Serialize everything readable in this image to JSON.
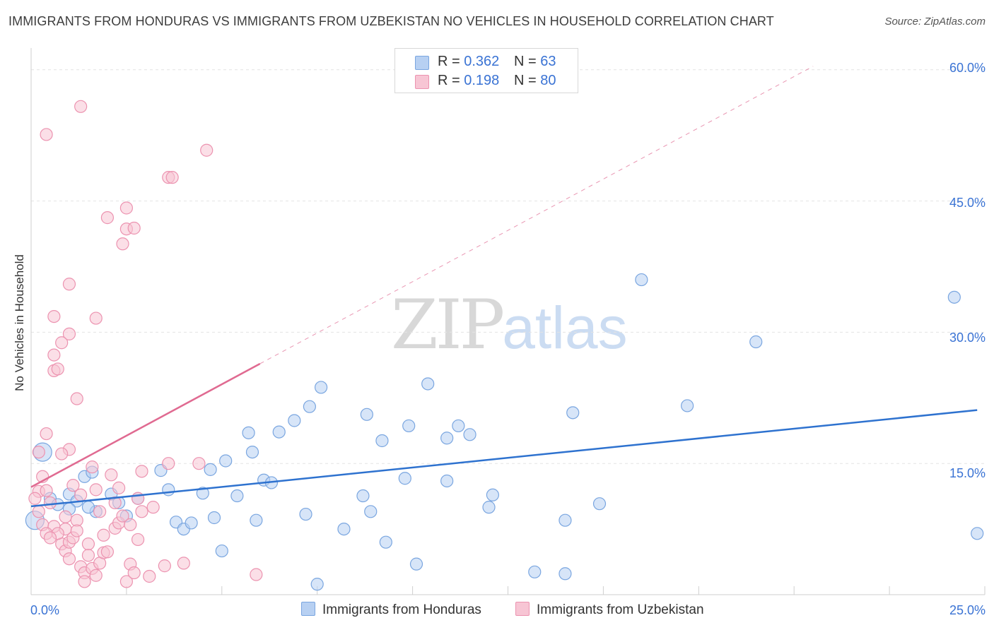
{
  "title": "IMMIGRANTS FROM HONDURAS VS IMMIGRANTS FROM UZBEKISTAN NO VEHICLES IN HOUSEHOLD CORRELATION CHART",
  "source": "Source: ZipAtlas.com",
  "watermark": {
    "zip": "ZIP",
    "atlas": "atlas"
  },
  "legend_top": {
    "rows": [
      {
        "r_label": "R =",
        "r_value": "0.362",
        "n_label": "N =",
        "n_value": "63"
      },
      {
        "r_label": "R =",
        "r_value": "0.198",
        "n_label": "N =",
        "n_value": "80"
      }
    ]
  },
  "colors": {
    "blue_fill": "#b7d0f2",
    "blue_stroke": "#7aa6e0",
    "blue_line": "#2e72cf",
    "pink_fill": "#f7c5d4",
    "pink_stroke": "#ec93b0",
    "pink_line": "#e06a91",
    "tick_text": "#3a73d4",
    "grid": "#e3e3e3"
  },
  "chart_data": {
    "type": "scatter",
    "title": "IMMIGRANTS FROM HONDURAS VS IMMIGRANTS FROM UZBEKISTAN NO VEHICLES IN HOUSEHOLD CORRELATION CHART",
    "xlabel": "",
    "ylabel": "No Vehicles in Household",
    "xlim": [
      0,
      25
    ],
    "ylim": [
      0,
      62
    ],
    "x_tick_labels": [
      "0.0%",
      "25.0%"
    ],
    "y_ticks": [
      15,
      30,
      45,
      60
    ],
    "y_tick_labels": [
      "15.0%",
      "30.0%",
      "45.0%",
      "60.0%"
    ],
    "grid": true,
    "legend_position": "bottom",
    "series": [
      {
        "name": "Immigrants from Honduras",
        "color": "#7aa6e0",
        "points": [
          [
            0.3,
            16.3
          ],
          [
            0.1,
            8.5
          ],
          [
            0.5,
            11.0
          ],
          [
            1.0,
            11.5
          ],
          [
            1.2,
            10.7
          ],
          [
            1.4,
            13.5
          ],
          [
            1.0,
            9.8
          ],
          [
            1.6,
            14.0
          ],
          [
            1.7,
            9.5
          ],
          [
            2.3,
            10.5
          ],
          [
            2.1,
            11.5
          ],
          [
            3.4,
            14.2
          ],
          [
            3.6,
            12.0
          ],
          [
            3.8,
            8.3
          ],
          [
            4.0,
            7.5
          ],
          [
            4.2,
            8.2
          ],
          [
            4.5,
            11.6
          ],
          [
            4.7,
            14.3
          ],
          [
            4.8,
            8.8
          ],
          [
            5.0,
            5.0
          ],
          [
            5.1,
            15.3
          ],
          [
            5.4,
            11.3
          ],
          [
            5.7,
            18.5
          ],
          [
            5.8,
            16.3
          ],
          [
            5.9,
            8.5
          ],
          [
            6.1,
            13.1
          ],
          [
            6.3,
            12.8
          ],
          [
            6.5,
            18.6
          ],
          [
            6.9,
            19.9
          ],
          [
            7.2,
            9.2
          ],
          [
            7.3,
            21.5
          ],
          [
            7.6,
            23.7
          ],
          [
            7.5,
            1.2
          ],
          [
            8.2,
            7.5
          ],
          [
            8.7,
            11.3
          ],
          [
            8.8,
            20.6
          ],
          [
            8.9,
            9.5
          ],
          [
            9.2,
            17.6
          ],
          [
            9.3,
            6.0
          ],
          [
            9.8,
            13.3
          ],
          [
            9.9,
            19.3
          ],
          [
            10.1,
            3.5
          ],
          [
            10.4,
            24.1
          ],
          [
            10.9,
            17.9
          ],
          [
            10.9,
            13.0
          ],
          [
            11.2,
            19.3
          ],
          [
            11.5,
            18.3
          ],
          [
            12.0,
            10.0
          ],
          [
            12.1,
            11.4
          ],
          [
            13.2,
            2.6
          ],
          [
            14.0,
            8.5
          ],
          [
            14.0,
            2.4
          ],
          [
            14.2,
            20.8
          ],
          [
            14.9,
            10.4
          ],
          [
            16.0,
            36.0
          ],
          [
            17.2,
            21.6
          ],
          [
            19.0,
            28.9
          ],
          [
            24.2,
            34.0
          ],
          [
            24.8,
            7.0
          ],
          [
            1.5,
            10.0
          ],
          [
            2.5,
            9.0
          ],
          [
            0.7,
            10.3
          ],
          [
            2.8,
            11.0
          ]
        ]
      },
      {
        "name": "Immigrants from Uzbekistan",
        "color": "#ec93b0",
        "points": [
          [
            0.2,
            16.3
          ],
          [
            0.3,
            13.5
          ],
          [
            0.2,
            11.8
          ],
          [
            0.1,
            11.0
          ],
          [
            0.4,
            11.9
          ],
          [
            0.5,
            10.5
          ],
          [
            0.3,
            8.0
          ],
          [
            0.6,
            7.8
          ],
          [
            0.4,
            7.0
          ],
          [
            0.8,
            5.8
          ],
          [
            0.9,
            5.0
          ],
          [
            1.0,
            6.0
          ],
          [
            1.1,
            6.5
          ],
          [
            0.9,
            7.5
          ],
          [
            1.2,
            8.5
          ],
          [
            1.3,
            3.2
          ],
          [
            1.4,
            2.5
          ],
          [
            1.4,
            1.5
          ],
          [
            1.6,
            3.0
          ],
          [
            1.7,
            2.2
          ],
          [
            1.8,
            3.6
          ],
          [
            1.9,
            4.8
          ],
          [
            2.0,
            4.9
          ],
          [
            2.2,
            7.6
          ],
          [
            2.3,
            8.2
          ],
          [
            2.5,
            1.5
          ],
          [
            2.6,
            3.5
          ],
          [
            2.7,
            2.5
          ],
          [
            2.8,
            11.0
          ],
          [
            2.9,
            9.5
          ],
          [
            3.1,
            2.1
          ],
          [
            3.2,
            10.0
          ],
          [
            3.5,
            3.3
          ],
          [
            3.6,
            15.0
          ],
          [
            4.0,
            3.6
          ],
          [
            4.4,
            15.0
          ],
          [
            5.9,
            2.3
          ],
          [
            0.4,
            18.4
          ],
          [
            1.0,
            16.6
          ],
          [
            1.2,
            22.4
          ],
          [
            1.0,
            29.8
          ],
          [
            0.6,
            27.4
          ],
          [
            0.6,
            25.6
          ],
          [
            0.7,
            25.8
          ],
          [
            0.8,
            28.8
          ],
          [
            0.6,
            31.8
          ],
          [
            1.0,
            35.5
          ],
          [
            1.7,
            31.6
          ],
          [
            2.0,
            43.1
          ],
          [
            2.4,
            40.1
          ],
          [
            2.5,
            44.2
          ],
          [
            2.5,
            41.8
          ],
          [
            2.7,
            41.9
          ],
          [
            3.6,
            47.7
          ],
          [
            3.7,
            47.7
          ],
          [
            4.6,
            50.8
          ],
          [
            0.4,
            52.6
          ],
          [
            1.3,
            55.8
          ],
          [
            0.7,
            7.0
          ],
          [
            1.5,
            5.8
          ],
          [
            0.5,
            6.5
          ],
          [
            0.2,
            9.5
          ],
          [
            1.7,
            12.0
          ],
          [
            2.1,
            13.7
          ],
          [
            2.3,
            12.2
          ],
          [
            2.2,
            10.5
          ],
          [
            1.8,
            9.5
          ],
          [
            2.4,
            9.0
          ],
          [
            2.6,
            8.0
          ],
          [
            0.9,
            8.9
          ],
          [
            1.1,
            12.5
          ],
          [
            1.3,
            11.4
          ],
          [
            1.6,
            14.6
          ],
          [
            0.8,
            16.1
          ],
          [
            2.8,
            6.3
          ],
          [
            1.9,
            6.8
          ],
          [
            1.0,
            4.1
          ],
          [
            1.5,
            4.5
          ],
          [
            2.9,
            14.1
          ],
          [
            1.2,
            7.3
          ]
        ]
      }
    ],
    "trend_lines": [
      {
        "series": "Immigrants from Honduras",
        "x": [
          0,
          24.8
        ],
        "y": [
          10.1,
          21.1
        ],
        "style": "solid"
      },
      {
        "series": "Immigrants from Uzbekistan",
        "x": [
          0,
          6.0
        ],
        "y": [
          12.3,
          26.4
        ],
        "style": "solid"
      },
      {
        "series": "Immigrants from Uzbekistan",
        "x": [
          6.0,
          20.5
        ],
        "y": [
          26.4,
          60.4
        ],
        "style": "dashed"
      }
    ]
  },
  "legend_bottom": {
    "items": [
      "Immigrants from Honduras",
      "Immigrants from Uzbekistan"
    ]
  }
}
